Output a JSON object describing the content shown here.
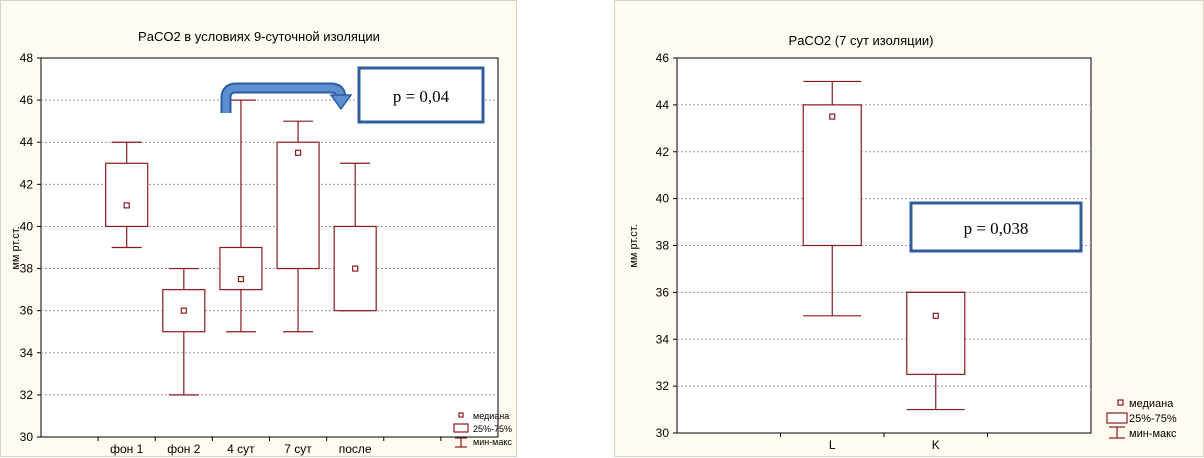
{
  "chart_data": [
    {
      "type": "box",
      "title": "PaCO2 в условиях 9-суточной изоляции",
      "ylabel": "мм рт.ст.",
      "ylim": [
        30,
        48
      ],
      "yticks": [
        30,
        32,
        34,
        36,
        38,
        40,
        42,
        44,
        46,
        48
      ],
      "grid": true,
      "categories": [
        "фон 1",
        "фон 2",
        "4 сут",
        "7 сут",
        "после"
      ],
      "boxes": [
        {
          "category": "фон 1",
          "min": 39,
          "q1": 40,
          "median": 41,
          "q3": 43,
          "max": 44
        },
        {
          "category": "фон 2",
          "min": 32,
          "q1": 35,
          "median": 36,
          "q3": 37,
          "max": 38
        },
        {
          "category": "4 сут",
          "min": 35,
          "q1": 37,
          "median": 37.5,
          "q3": 39,
          "max": 46
        },
        {
          "category": "7 сут",
          "min": 35,
          "q1": 38,
          "median": 43.5,
          "q3": 44,
          "max": 45
        },
        {
          "category": "после",
          "min": 36,
          "q1": 36,
          "median": 38,
          "q3": 40,
          "max": 43
        }
      ],
      "legend": {
        "placement": "bottom-right",
        "median": "медиана",
        "iqr": "25%-75%",
        "range": "мин-макс"
      },
      "annotation": {
        "text": "p = 0,04",
        "arrow_from": "4 сут",
        "arrow_to": "7 сут",
        "color": "#4a7ebf"
      }
    },
    {
      "type": "box",
      "title": "PaCO2 (7 сут изоляции)",
      "ylabel": "мм рт.ст.",
      "ylim": [
        30,
        46
      ],
      "yticks": [
        30,
        32,
        34,
        36,
        38,
        40,
        42,
        44,
        46
      ],
      "grid": true,
      "categories": [
        "L",
        "K"
      ],
      "boxes": [
        {
          "category": "L",
          "min": 35,
          "q1": 38,
          "median": 43.5,
          "q3": 44,
          "max": 45
        },
        {
          "category": "K",
          "min": 31,
          "q1": 32.5,
          "median": 35,
          "q3": 36,
          "max": 36
        }
      ],
      "legend": {
        "placement": "bottom-right",
        "median": "медиана",
        "iqr": "25%-75%",
        "range": "мин-макс"
      },
      "annotation": {
        "text": "p = 0,038"
      }
    }
  ],
  "colors": {
    "box": "#8b1a1a",
    "annotation_border": "#2e5c9e",
    "arrow": "#4a7ebf",
    "panel_bg": "#fffbf0"
  }
}
